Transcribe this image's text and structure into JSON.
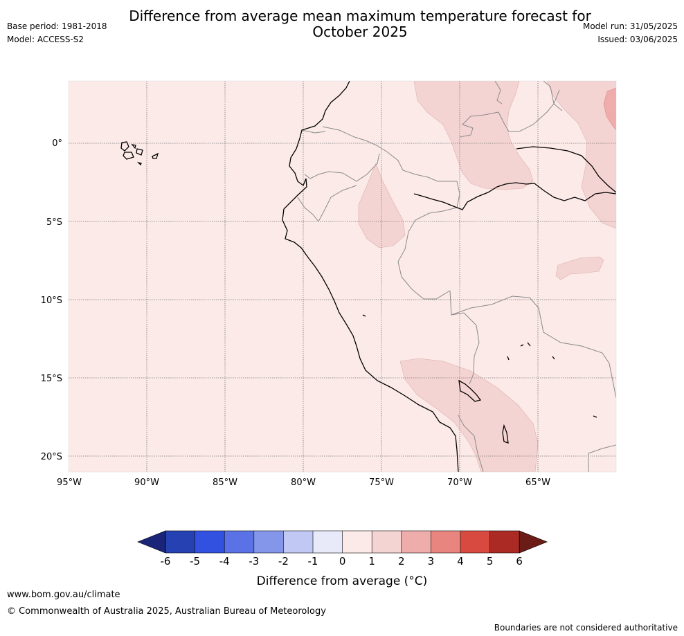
{
  "header": {
    "title_line1": "Difference from average mean maximum temperature forecast for",
    "title_line2": "October 2025",
    "base_period": "Base period: 1981-2018",
    "model": "Model: ACCESS-S2",
    "model_run": "Model run: 31/05/2025",
    "issued": "Issued: 03/06/2025"
  },
  "map": {
    "background_color": "#fbeae8",
    "land_outline_color": "#000000",
    "border_color": "#8a8a8a",
    "latitude_labels": [
      "0°",
      "5°S",
      "10°S",
      "15°S",
      "20°S"
    ],
    "longitude_labels": [
      "95°W",
      "90°W",
      "85°W",
      "80°W",
      "75°W",
      "70°W",
      "65°W"
    ],
    "anomaly_regions": [
      {
        "name": "Northern Brazil / Venezuela",
        "category": "1 to 2",
        "color": "#f4d4d2"
      },
      {
        "name": "Northeast corner",
        "category": "2 to 3",
        "color": "#eeacaa"
      },
      {
        "name": "Central Peru",
        "category": "1 to 2",
        "color": "#f4d4d2"
      },
      {
        "name": "Western Brazil",
        "category": "1 to 2",
        "color": "#f4d4d2"
      },
      {
        "name": "Southern Peru / Bolivia",
        "category": "1 to 2",
        "color": "#f4d4d2"
      }
    ]
  },
  "colorbar": {
    "ticks": [
      "-6",
      "-5",
      "-4",
      "-3",
      "-2",
      "-1",
      "0",
      "1",
      "2",
      "3",
      "4",
      "5",
      "6"
    ],
    "colors": [
      "#1a2478",
      "#2541b2",
      "#3351e0",
      "#5a72e6",
      "#8496ea",
      "#c0c8f3",
      "#e8eafa",
      "#fbeae8",
      "#f4d4d2",
      "#eeacaa",
      "#e8857e",
      "#d84a3f",
      "#ab2a24",
      "#6b1c17"
    ],
    "label": "Difference from average ($^\\circ$C)",
    "label_display": "Difference from average (°C)"
  },
  "footer": {
    "url": "www.bom.gov.au/climate",
    "copyright": "© Commonwealth of Australia 2025, Australian Bureau of Meteorology",
    "note": "Boundaries are not considered authoritative"
  }
}
